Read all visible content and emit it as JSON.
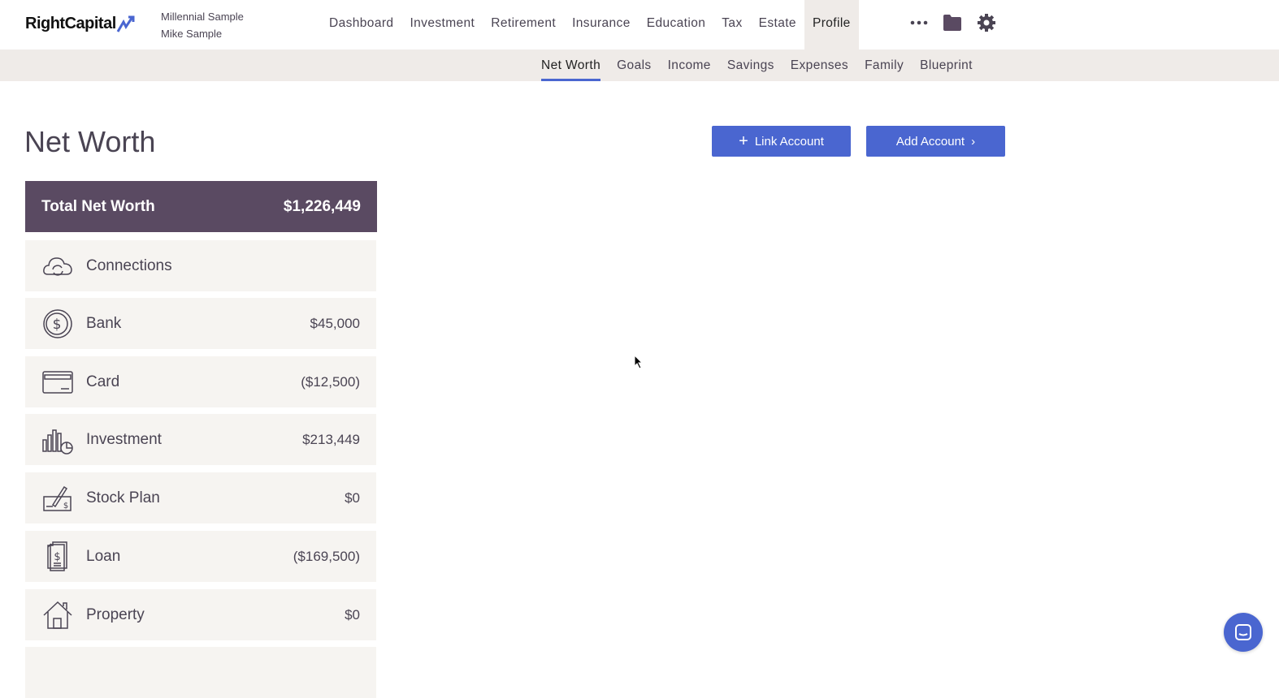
{
  "brand": {
    "name": "RightCapital",
    "accent": "#4a66d0"
  },
  "client": {
    "household": "Millennial Sample",
    "person": "Mike Sample"
  },
  "nav": {
    "items": [
      "Dashboard",
      "Investment",
      "Retirement",
      "Insurance",
      "Education",
      "Tax",
      "Estate",
      "Profile"
    ],
    "active": "Profile"
  },
  "subnav": {
    "items": [
      "Net Worth",
      "Goals",
      "Income",
      "Savings",
      "Expenses",
      "Family",
      "Blueprint"
    ],
    "active": "Net Worth"
  },
  "page": {
    "title": "Net Worth",
    "link_account": "Link Account",
    "add_account": "Add Account"
  },
  "total": {
    "label": "Total Net Worth",
    "value": "$1,226,449"
  },
  "categories": [
    {
      "label": "Connections",
      "value": "",
      "icon": "cloud-sync-icon"
    },
    {
      "label": "Bank",
      "value": "$45,000",
      "icon": "dollar-coin-icon"
    },
    {
      "label": "Card",
      "value": "($12,500)",
      "icon": "credit-card-icon"
    },
    {
      "label": "Investment",
      "value": "$213,449",
      "icon": "bar-chart-pie-icon"
    },
    {
      "label": "Stock Plan",
      "value": "$0",
      "icon": "check-signature-icon"
    },
    {
      "label": "Loan",
      "value": "($169,500)",
      "icon": "loan-document-icon"
    },
    {
      "label": "Property",
      "value": "$0",
      "icon": "house-icon"
    }
  ]
}
